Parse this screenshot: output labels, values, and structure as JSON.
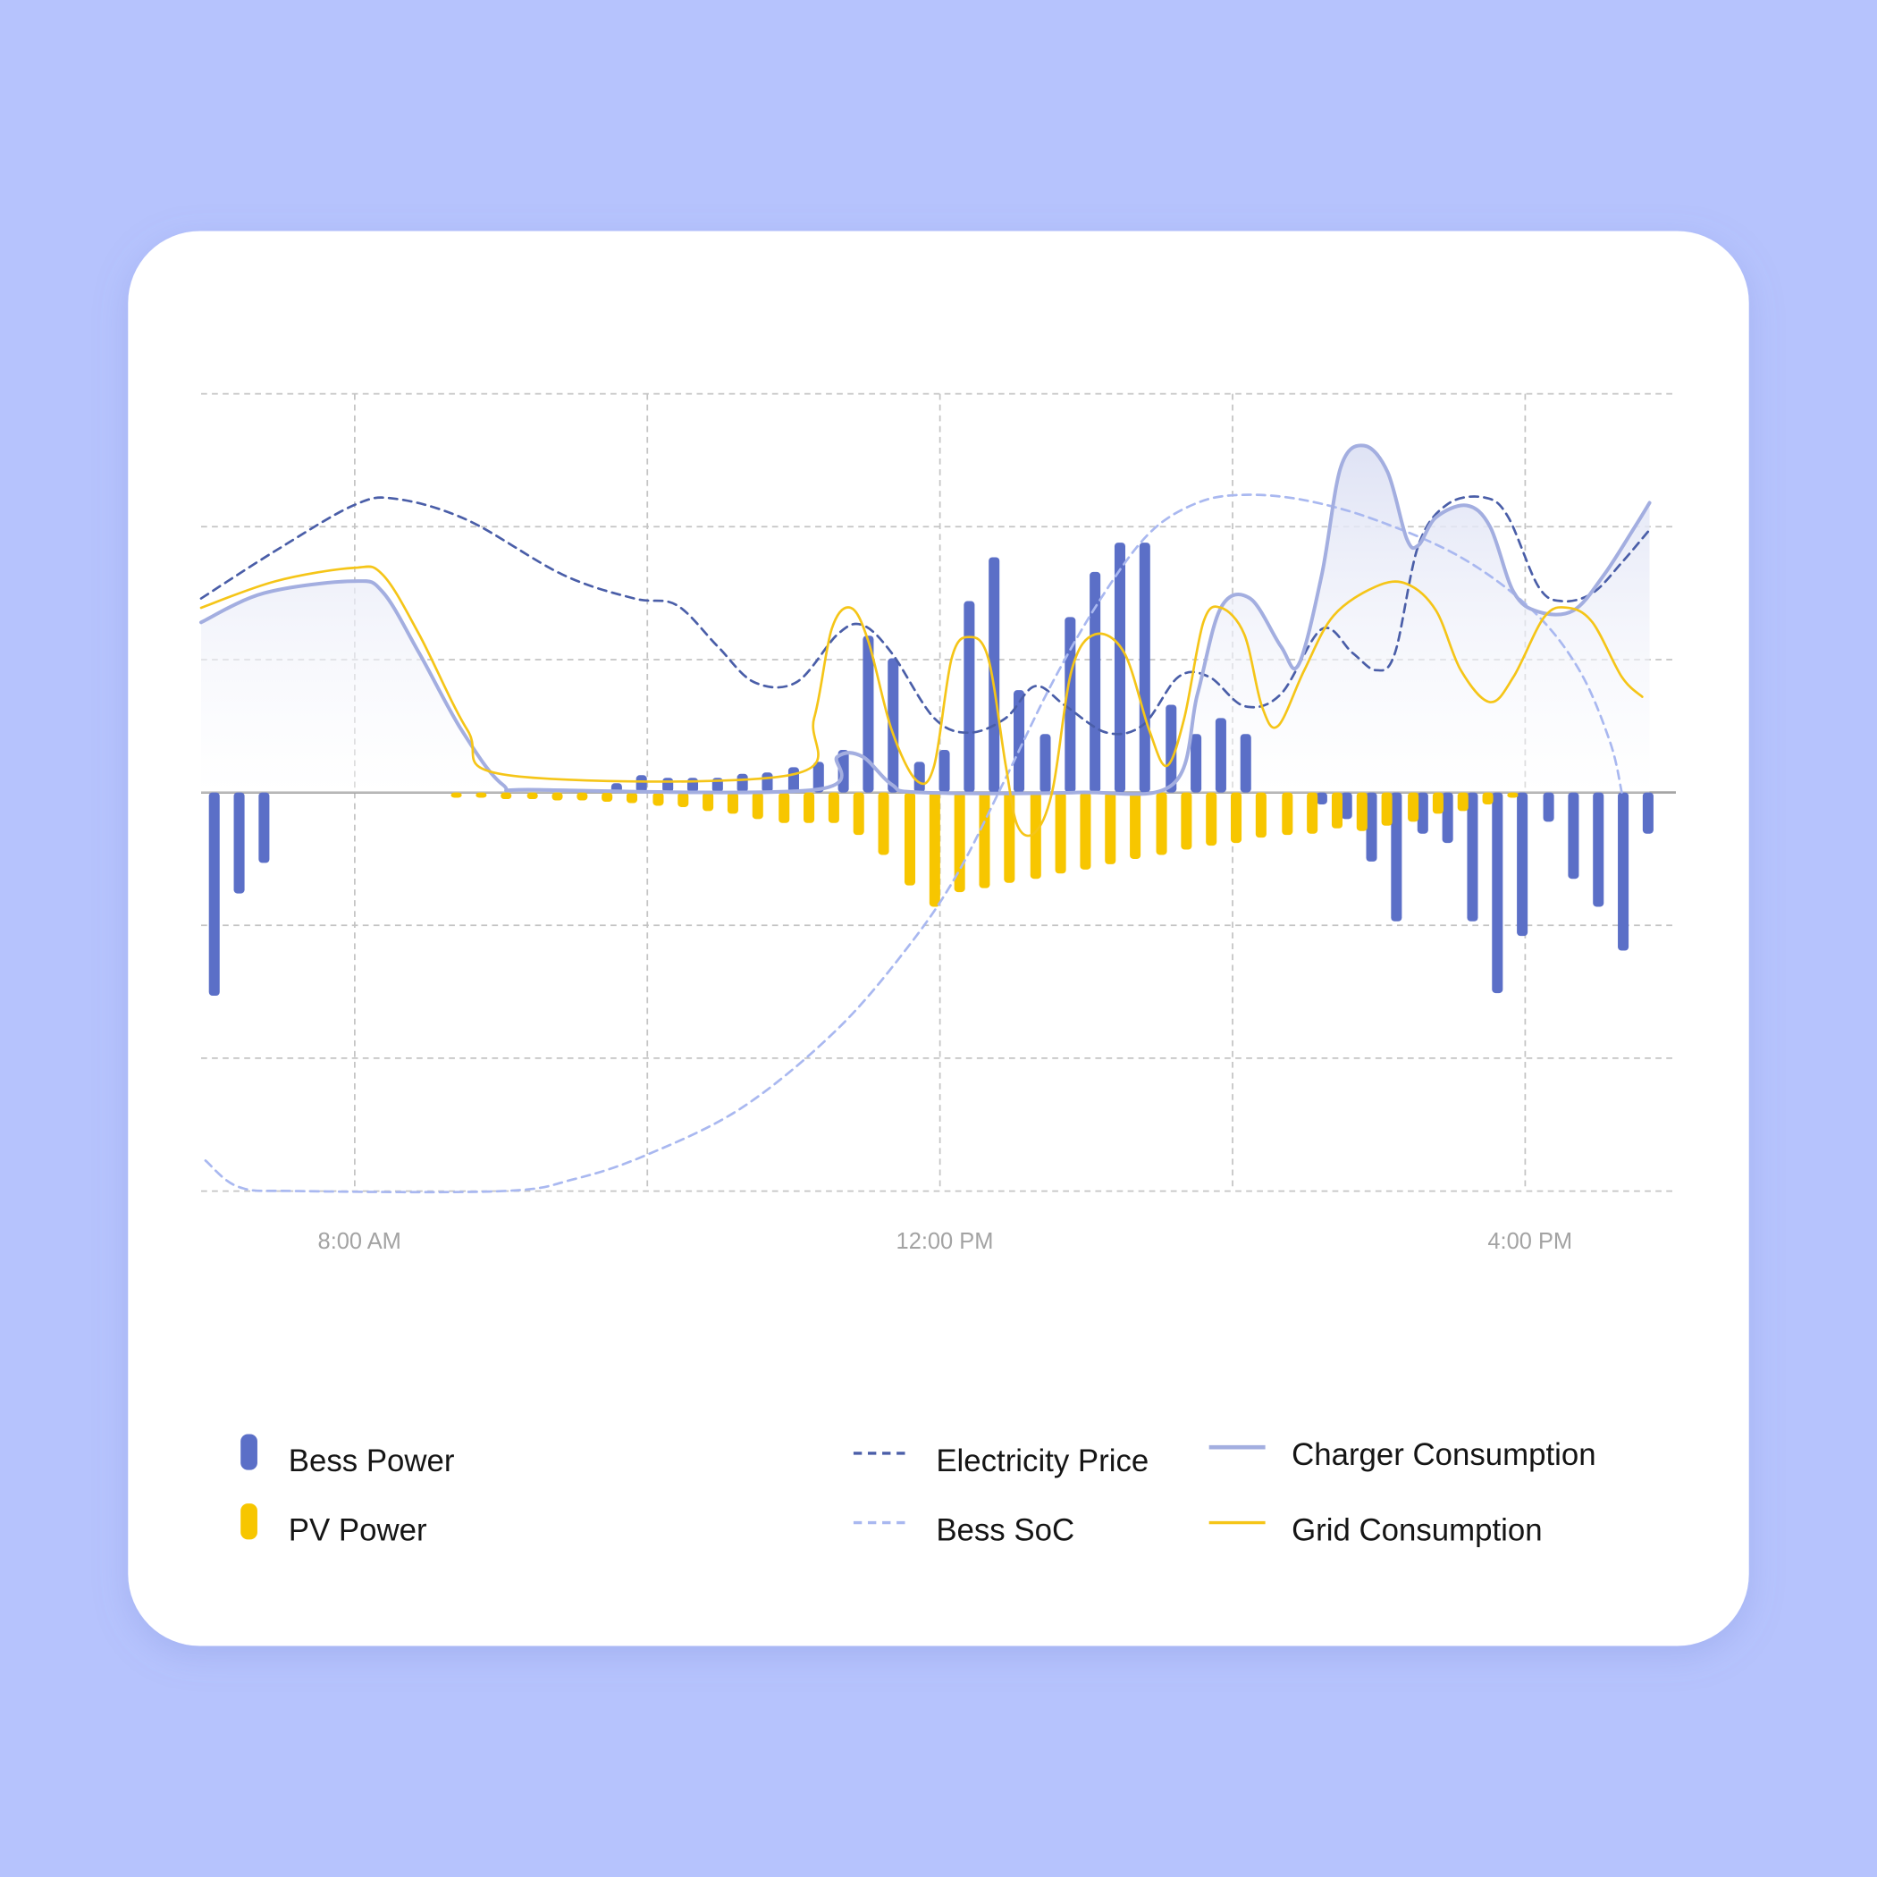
{
  "chart_data": {
    "type": "combo",
    "xlim": [
      6.95,
      17.03
    ],
    "xticks": [
      {
        "value": 8,
        "label": "8:00 AM"
      },
      {
        "value": 10,
        "label": null
      },
      {
        "value": 12,
        "label": "12:00 PM"
      },
      {
        "value": 14,
        "label": null
      },
      {
        "value": 16,
        "label": "4:00 PM"
      }
    ],
    "ylim": [
      -3,
      3
    ],
    "yticks": [
      -3,
      -2,
      -1,
      0,
      1,
      2,
      3
    ],
    "grid": true,
    "x": [
      7.04,
      7.21,
      7.38,
      7.56,
      7.73,
      7.9,
      8.07,
      8.24,
      8.42,
      8.59,
      8.76,
      8.93,
      9.1,
      9.28,
      9.45,
      9.62,
      9.79,
      9.96,
      10.14,
      10.31,
      10.48,
      10.65,
      10.82,
      11.0,
      11.17,
      11.34,
      11.51,
      11.68,
      11.86,
      12.03,
      12.2,
      12.37,
      12.54,
      12.72,
      12.89,
      13.06,
      13.23,
      13.4,
      13.58,
      13.75,
      13.92,
      14.09,
      14.26,
      14.44,
      14.61,
      14.78,
      14.95,
      15.12,
      15.3,
      15.47,
      15.64,
      15.81,
      15.98,
      16.16,
      16.33,
      16.5,
      16.67,
      16.84
    ],
    "series": [
      {
        "name": "Bess Power",
        "type": "bar",
        "color": "#5b6fc7",
        "values": [
          -1.53,
          -0.76,
          -0.53,
          null,
          null,
          null,
          null,
          null,
          null,
          null,
          null,
          null,
          null,
          null,
          null,
          null,
          0.07,
          0.13,
          0.11,
          0.11,
          0.11,
          0.14,
          0.15,
          0.19,
          0.23,
          0.32,
          1.18,
          1.01,
          0.23,
          0.32,
          1.44,
          1.77,
          0.77,
          0.44,
          1.32,
          1.66,
          1.88,
          1.88,
          0.66,
          0.44,
          0.56,
          0.44,
          null,
          null,
          -0.09,
          -0.2,
          -0.52,
          -0.97,
          -0.31,
          -0.38,
          -0.97,
          -1.51,
          -1.08,
          -0.22,
          -0.65,
          -0.86,
          -1.19,
          -0.31
        ]
      },
      {
        "name": "PV Power",
        "type": "bar",
        "color": "#f7c600",
        "values": [
          null,
          null,
          null,
          null,
          null,
          null,
          null,
          null,
          null,
          null,
          -0.04,
          -0.04,
          -0.05,
          -0.05,
          -0.06,
          -0.06,
          -0.07,
          -0.08,
          -0.1,
          -0.11,
          -0.14,
          -0.16,
          -0.2,
          -0.23,
          -0.23,
          -0.23,
          -0.32,
          -0.47,
          -0.7,
          -0.86,
          -0.75,
          -0.72,
          -0.68,
          -0.65,
          -0.61,
          -0.58,
          -0.54,
          -0.5,
          -0.47,
          -0.43,
          -0.4,
          -0.38,
          -0.34,
          -0.32,
          -0.31,
          -0.27,
          -0.29,
          -0.25,
          -0.22,
          -0.16,
          -0.14,
          -0.09,
          -0.04,
          null,
          null,
          null,
          null,
          null
        ]
      },
      {
        "name": "Electricity Price",
        "type": "line",
        "dash": true,
        "color": "#4a5ea8",
        "x": [
          6.95,
          7.46,
          7.99,
          8.28,
          8.77,
          9.42,
          9.91,
          10.2,
          10.48,
          10.73,
          11.02,
          11.3,
          11.47,
          11.67,
          11.96,
          12.2,
          12.45,
          12.65,
          12.86,
          13.14,
          13.39,
          13.63,
          13.84,
          14.08,
          14.33,
          14.61,
          14.82,
          14.98,
          15.11,
          15.27,
          15.47,
          15.72,
          15.88,
          16.09,
          16.25,
          16.46,
          16.66,
          16.86
        ],
        "values": [
          1.46,
          1.82,
          2.16,
          2.21,
          2.05,
          1.64,
          1.46,
          1.41,
          1.1,
          0.83,
          0.83,
          1.19,
          1.26,
          1.05,
          0.56,
          0.45,
          0.56,
          0.8,
          0.65,
          0.45,
          0.51,
          0.87,
          0.87,
          0.65,
          0.74,
          1.23,
          1.05,
          0.92,
          1.05,
          1.86,
          2.17,
          2.22,
          2.08,
          1.55,
          1.44,
          1.5,
          1.73,
          1.99
        ]
      },
      {
        "name": "Bess SoC",
        "type": "line",
        "dash": true,
        "color": "#a9b8f0",
        "x": [
          6.98,
          7.21,
          7.62,
          9.01,
          9.5,
          9.99,
          10.65,
          11.3,
          11.79,
          12.12,
          12.45,
          12.77,
          13.1,
          13.43,
          13.76,
          14.08,
          14.49,
          14.98,
          15.56,
          16.05,
          16.37,
          16.58,
          16.66
        ],
        "values": [
          -2.77,
          -2.97,
          -3.0,
          -3.0,
          -2.91,
          -2.73,
          -2.37,
          -1.78,
          -1.15,
          -0.61,
          0.11,
          0.83,
          1.46,
          1.95,
          2.18,
          2.24,
          2.2,
          2.05,
          1.77,
          1.37,
          0.92,
          0.38,
          0.0
        ]
      },
      {
        "name": "Charger Consumption",
        "type": "area",
        "color": "#a3aee0",
        "x": [
          6.95,
          7.38,
          7.99,
          8.19,
          8.44,
          8.73,
          9.01,
          9.26,
          11.14,
          11.3,
          11.47,
          11.67,
          11.87,
          12.94,
          13.59,
          13.76,
          13.92,
          14.12,
          14.33,
          14.45,
          14.61,
          14.74,
          14.9,
          15.06,
          15.19,
          15.27,
          15.39,
          15.6,
          15.76,
          15.92,
          16.09,
          16.33,
          16.54,
          16.75,
          16.85
        ],
        "values": [
          1.28,
          1.5,
          1.59,
          1.51,
          1.05,
          0.47,
          0.06,
          0.02,
          0.02,
          0.27,
          0.27,
          0.06,
          0,
          0,
          0.06,
          0.74,
          1.39,
          1.46,
          1.1,
          0.96,
          1.64,
          2.45,
          2.61,
          2.41,
          1.91,
          1.86,
          2.07,
          2.16,
          2.0,
          1.51,
          1.36,
          1.37,
          1.64,
          2.0,
          2.18
        ]
      },
      {
        "name": "Grid Consumption",
        "type": "line",
        "color": "#f5c518",
        "x": [
          6.95,
          7.46,
          7.99,
          8.19,
          8.44,
          8.77,
          9.05,
          10.97,
          11.14,
          11.26,
          11.39,
          11.51,
          11.67,
          11.84,
          11.96,
          12.08,
          12.2,
          12.33,
          12.45,
          12.53,
          12.65,
          12.77,
          12.9,
          13.06,
          13.26,
          13.43,
          13.55,
          13.67,
          13.8,
          13.92,
          14.08,
          14.2,
          14.31,
          14.49,
          14.69,
          14.98,
          15.19,
          15.39,
          15.56,
          15.76,
          15.92,
          16.13,
          16.29,
          16.46,
          16.66,
          16.8
        ],
        "values": [
          1.39,
          1.59,
          1.69,
          1.64,
          1.19,
          0.47,
          0.13,
          0.13,
          0.56,
          1.23,
          1.39,
          1.14,
          0.47,
          0.09,
          0.2,
          1.01,
          1.17,
          1.01,
          0.2,
          -0.25,
          -0.3,
          0.02,
          0.92,
          1.19,
          1.05,
          0.47,
          0.2,
          0.56,
          1.28,
          1.39,
          1.19,
          0.65,
          0.5,
          0.92,
          1.33,
          1.55,
          1.57,
          1.37,
          0.92,
          0.68,
          0.87,
          1.32,
          1.39,
          1.28,
          0.87,
          0.72
        ]
      }
    ]
  }
}
